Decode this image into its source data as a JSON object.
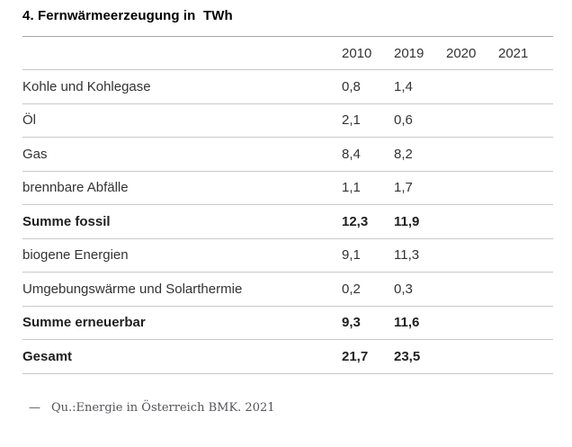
{
  "title": "4. Fernwärmeerzeugung in  TWh",
  "unit": "TWh",
  "table": {
    "columns": [
      "2010",
      "2019",
      "2020",
      "2021"
    ],
    "rows": [
      {
        "label": "Kohle und Kohlegase",
        "values": [
          "0,8",
          "1,4",
          "",
          ""
        ],
        "bold": false
      },
      {
        "label": "Öl",
        "values": [
          "2,1",
          "0,6",
          "",
          ""
        ],
        "bold": false
      },
      {
        "label": "Gas",
        "values": [
          "8,4",
          "8,2",
          "",
          ""
        ],
        "bold": false
      },
      {
        "label": "brennbare Abfälle",
        "values": [
          "1,1",
          "1,7",
          "",
          ""
        ],
        "bold": false
      },
      {
        "label": "Summe fossil",
        "values": [
          "12,3",
          "11,9",
          "",
          ""
        ],
        "bold": true
      },
      {
        "label": "biogene Energien",
        "values": [
          "9,1",
          "11,3",
          "",
          ""
        ],
        "bold": false
      },
      {
        "label": "Umgebungswärme und Solarthermie",
        "values": [
          "0,2",
          "0,3",
          "",
          ""
        ],
        "bold": false
      },
      {
        "label": "Summe erneuerbar",
        "values": [
          "9,3",
          "11,6",
          "",
          ""
        ],
        "bold": true
      },
      {
        "label": "Gesamt",
        "values": [
          "21,7",
          "23,5",
          "",
          ""
        ],
        "bold": true
      }
    ]
  },
  "footer": {
    "dash": "—",
    "source": "Qu.:Energie in Österreich BMK. 2021"
  },
  "colors": {
    "background": "#ffffff",
    "title_text": "#000000",
    "body_text": "#333333",
    "emphasis_text": "#1f1f1f",
    "top_rule": "#a8a8a8",
    "row_rule": "#c9c9c9",
    "footer_text": "#54555a"
  },
  "chart_data": {
    "type": "table",
    "title": "4. Fernwärmeerzeugung in TWh",
    "unit": "TWh",
    "columns": [
      "2010",
      "2019",
      "2020",
      "2021"
    ],
    "rows": [
      {
        "label": "Kohle und Kohlegase",
        "values": [
          0.8,
          1.4,
          null,
          null
        ],
        "emphasis": false
      },
      {
        "label": "Öl",
        "values": [
          2.1,
          0.6,
          null,
          null
        ],
        "emphasis": false
      },
      {
        "label": "Gas",
        "values": [
          8.4,
          8.2,
          null,
          null
        ],
        "emphasis": false
      },
      {
        "label": "brennbare Abfälle",
        "values": [
          1.1,
          1.7,
          null,
          null
        ],
        "emphasis": false
      },
      {
        "label": "Summe fossil",
        "values": [
          12.3,
          11.9,
          null,
          null
        ],
        "emphasis": true
      },
      {
        "label": "biogene Energien",
        "values": [
          9.1,
          11.3,
          null,
          null
        ],
        "emphasis": false
      },
      {
        "label": "Umgebungswärme und Solarthermie",
        "values": [
          0.2,
          0.3,
          null,
          null
        ],
        "emphasis": false
      },
      {
        "label": "Summe erneuerbar",
        "values": [
          9.3,
          11.6,
          null,
          null
        ],
        "emphasis": true
      },
      {
        "label": "Gesamt",
        "values": [
          21.7,
          23.5,
          null,
          null
        ],
        "emphasis": true
      }
    ],
    "source": "Qu.:Energie in Österreich BMK. 2021"
  }
}
